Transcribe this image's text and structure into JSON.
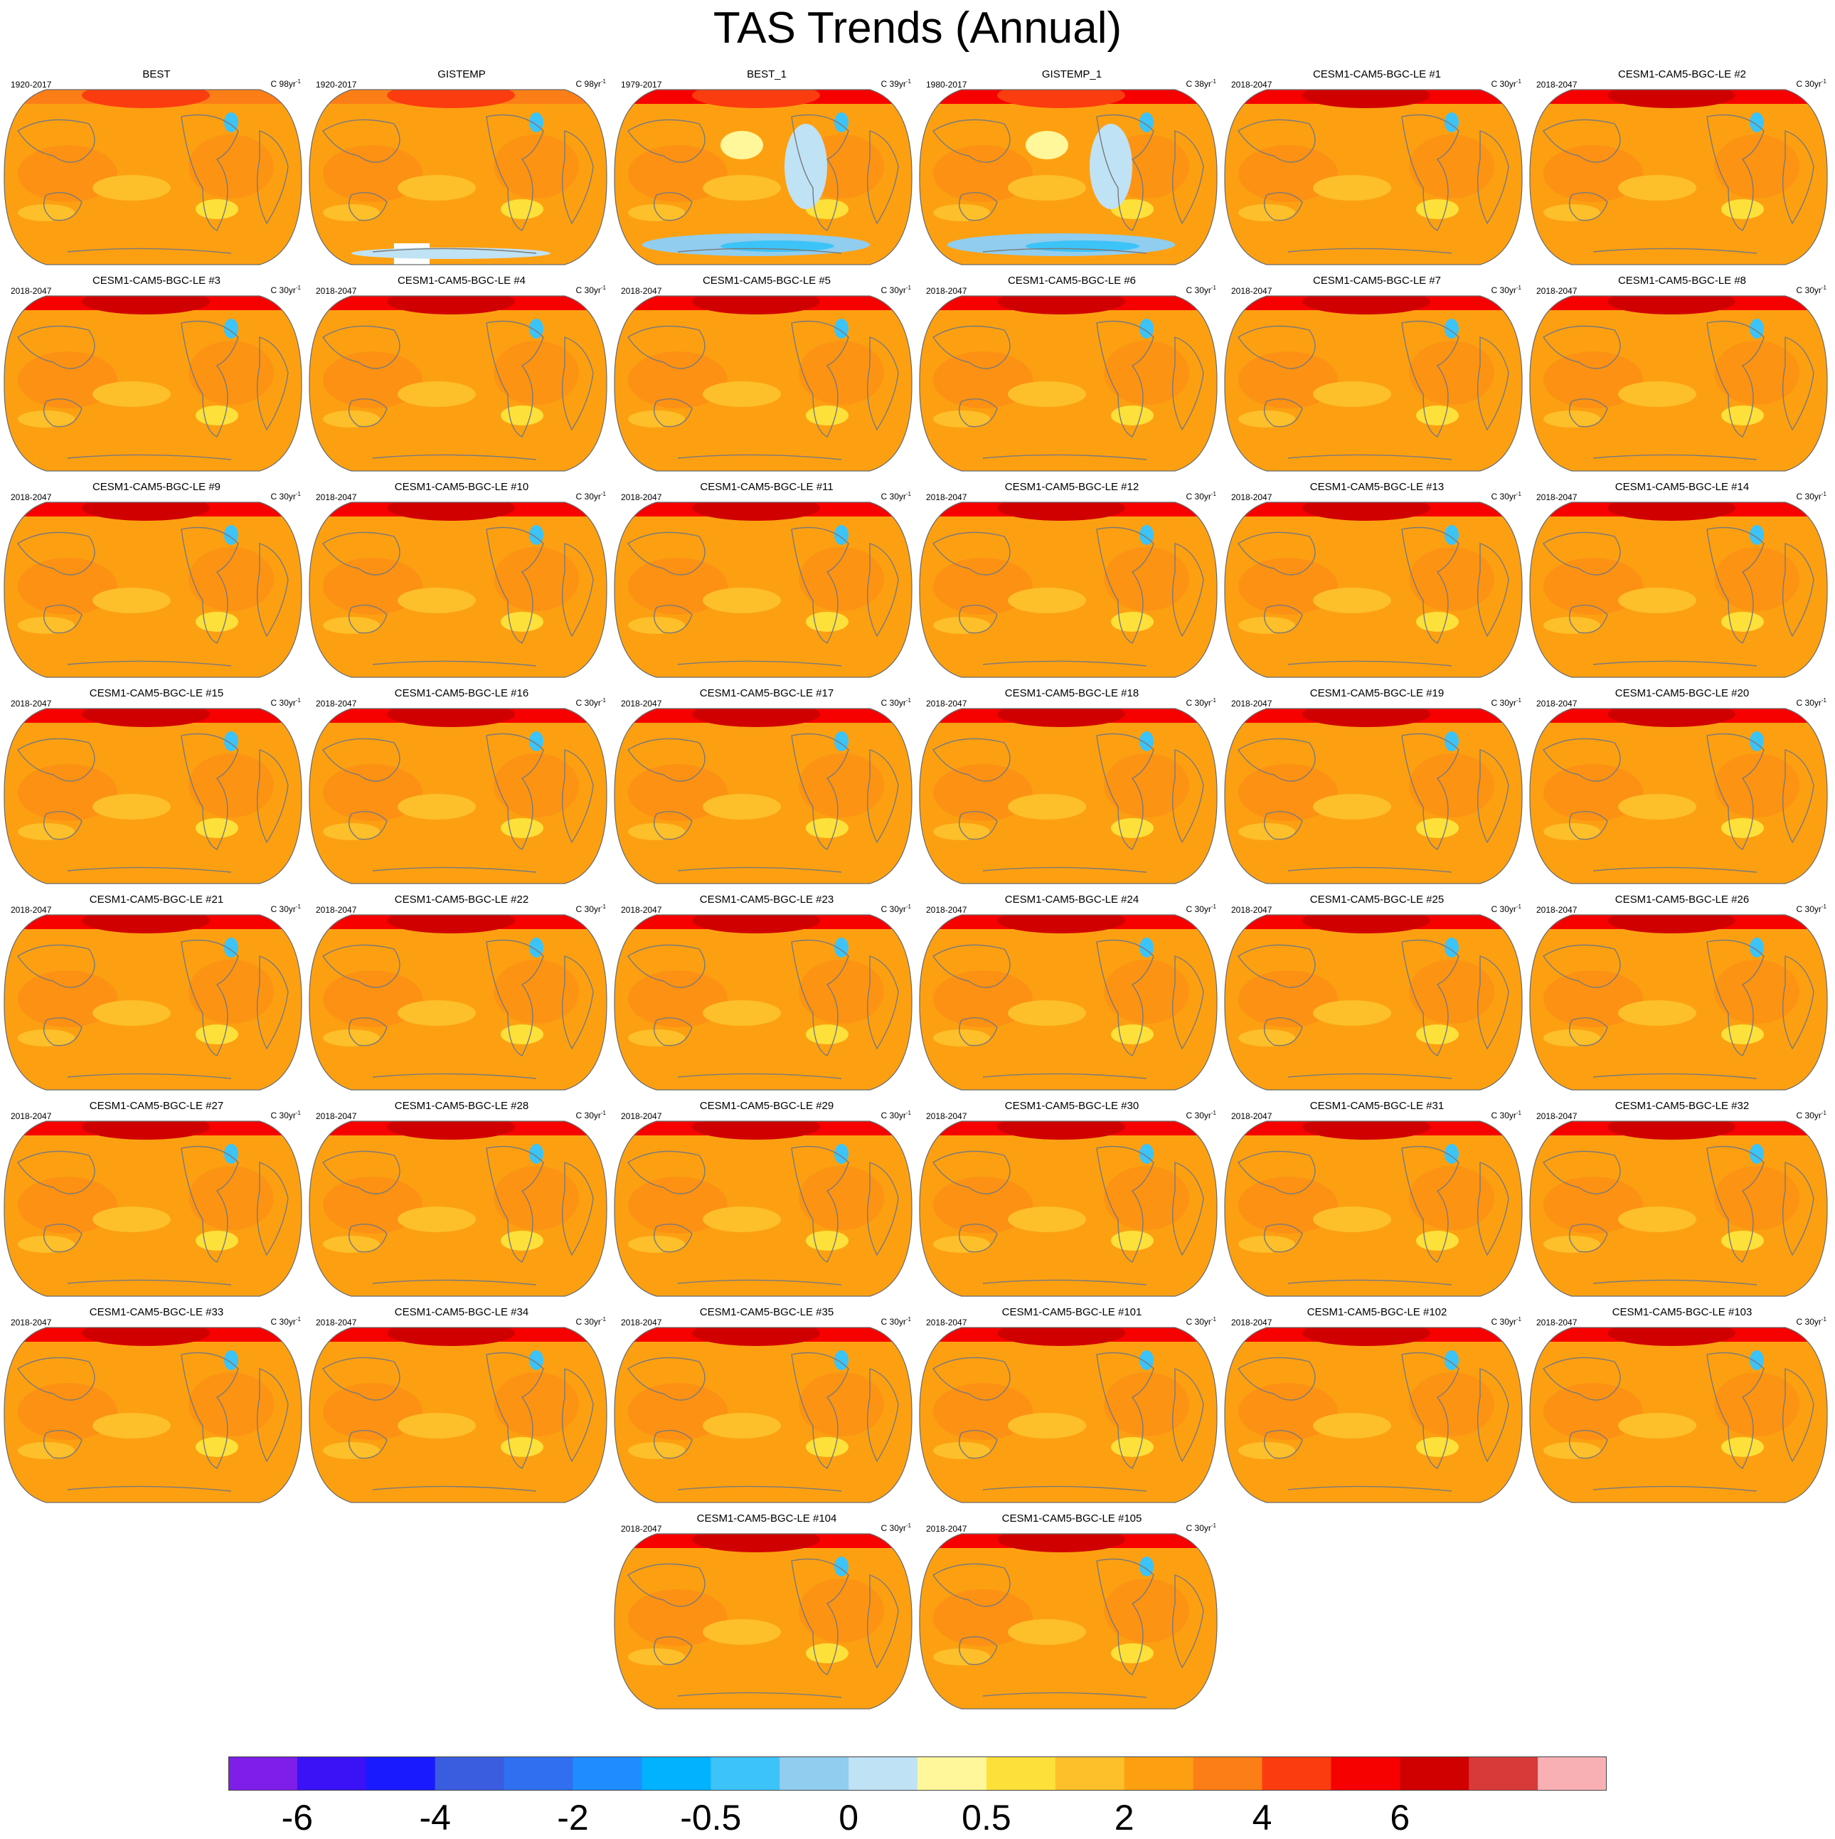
{
  "title": "TAS Trends (Annual)",
  "colorbar": {
    "colors": [
      "#7f1ee8",
      "#3a12f5",
      "#1a1aff",
      "#3a5de0",
      "#2f6ff0",
      "#1f8cff",
      "#00b2ff",
      "#3cc3f7",
      "#90cdee",
      "#bfe2f5",
      "#fff79a",
      "#fde03a",
      "#fdbf2a",
      "#fca012",
      "#fc7e17",
      "#fb3c0f",
      "#f70000",
      "#d00000",
      "#d83a3a",
      "#f9b0b4"
    ],
    "labels": [
      "-6",
      "-4",
      "-2",
      "-0.5",
      "0",
      "0.5",
      "2",
      "4",
      "6"
    ]
  },
  "panels": [
    {
      "title": "BEST",
      "period": "1920-2017",
      "units": "C 98yr"
    },
    {
      "title": "GISTEMP",
      "period": "1920-2017",
      "units": "C 98yr"
    },
    {
      "title": "BEST_1",
      "period": "1979-2017",
      "units": "C 39yr"
    },
    {
      "title": "GISTEMP_1",
      "period": "1980-2017",
      "units": "C 38yr"
    },
    {
      "title": "CESM1-CAM5-BGC-LE #1",
      "period": "2018-2047",
      "units": "C 30yr"
    },
    {
      "title": "CESM1-CAM5-BGC-LE #2",
      "period": "2018-2047",
      "units": "C 30yr"
    },
    {
      "title": "CESM1-CAM5-BGC-LE #3",
      "period": "2018-2047",
      "units": "C 30yr"
    },
    {
      "title": "CESM1-CAM5-BGC-LE #4",
      "period": "2018-2047",
      "units": "C 30yr"
    },
    {
      "title": "CESM1-CAM5-BGC-LE #5",
      "period": "2018-2047",
      "units": "C 30yr"
    },
    {
      "title": "CESM1-CAM5-BGC-LE #6",
      "period": "2018-2047",
      "units": "C 30yr"
    },
    {
      "title": "CESM1-CAM5-BGC-LE #7",
      "period": "2018-2047",
      "units": "C 30yr"
    },
    {
      "title": "CESM1-CAM5-BGC-LE #8",
      "period": "2018-2047",
      "units": "C 30yr"
    },
    {
      "title": "CESM1-CAM5-BGC-LE #9",
      "period": "2018-2047",
      "units": "C 30yr"
    },
    {
      "title": "CESM1-CAM5-BGC-LE #10",
      "period": "2018-2047",
      "units": "C 30yr"
    },
    {
      "title": "CESM1-CAM5-BGC-LE #11",
      "period": "2018-2047",
      "units": "C 30yr"
    },
    {
      "title": "CESM1-CAM5-BGC-LE #12",
      "period": "2018-2047",
      "units": "C 30yr"
    },
    {
      "title": "CESM1-CAM5-BGC-LE #13",
      "period": "2018-2047",
      "units": "C 30yr"
    },
    {
      "title": "CESM1-CAM5-BGC-LE #14",
      "period": "2018-2047",
      "units": "C 30yr"
    },
    {
      "title": "CESM1-CAM5-BGC-LE #15",
      "period": "2018-2047",
      "units": "C 30yr"
    },
    {
      "title": "CESM1-CAM5-BGC-LE #16",
      "period": "2018-2047",
      "units": "C 30yr"
    },
    {
      "title": "CESM1-CAM5-BGC-LE #17",
      "period": "2018-2047",
      "units": "C 30yr"
    },
    {
      "title": "CESM1-CAM5-BGC-LE #18",
      "period": "2018-2047",
      "units": "C 30yr"
    },
    {
      "title": "CESM1-CAM5-BGC-LE #19",
      "period": "2018-2047",
      "units": "C 30yr"
    },
    {
      "title": "CESM1-CAM5-BGC-LE #20",
      "period": "2018-2047",
      "units": "C 30yr"
    },
    {
      "title": "CESM1-CAM5-BGC-LE #21",
      "period": "2018-2047",
      "units": "C 30yr"
    },
    {
      "title": "CESM1-CAM5-BGC-LE #22",
      "period": "2018-2047",
      "units": "C 30yr"
    },
    {
      "title": "CESM1-CAM5-BGC-LE #23",
      "period": "2018-2047",
      "units": "C 30yr"
    },
    {
      "title": "CESM1-CAM5-BGC-LE #24",
      "period": "2018-2047",
      "units": "C 30yr"
    },
    {
      "title": "CESM1-CAM5-BGC-LE #25",
      "period": "2018-2047",
      "units": "C 30yr"
    },
    {
      "title": "CESM1-CAM5-BGC-LE #26",
      "period": "2018-2047",
      "units": "C 30yr"
    },
    {
      "title": "CESM1-CAM5-BGC-LE #27",
      "period": "2018-2047",
      "units": "C 30yr"
    },
    {
      "title": "CESM1-CAM5-BGC-LE #28",
      "period": "2018-2047",
      "units": "C 30yr"
    },
    {
      "title": "CESM1-CAM5-BGC-LE #29",
      "period": "2018-2047",
      "units": "C 30yr"
    },
    {
      "title": "CESM1-CAM5-BGC-LE #30",
      "period": "2018-2047",
      "units": "C 30yr"
    },
    {
      "title": "CESM1-CAM5-BGC-LE #31",
      "period": "2018-2047",
      "units": "C 30yr"
    },
    {
      "title": "CESM1-CAM5-BGC-LE #32",
      "period": "2018-2047",
      "units": "C 30yr"
    },
    {
      "title": "CESM1-CAM5-BGC-LE #33",
      "period": "2018-2047",
      "units": "C 30yr"
    },
    {
      "title": "CESM1-CAM5-BGC-LE #34",
      "period": "2018-2047",
      "units": "C 30yr"
    },
    {
      "title": "CESM1-CAM5-BGC-LE #35",
      "period": "2018-2047",
      "units": "C 30yr"
    },
    {
      "title": "CESM1-CAM5-BGC-LE #101",
      "period": "2018-2047",
      "units": "C 30yr"
    },
    {
      "title": "CESM1-CAM5-BGC-LE #102",
      "period": "2018-2047",
      "units": "C 30yr"
    },
    {
      "title": "CESM1-CAM5-BGC-LE #103",
      "period": "2018-2047",
      "units": "C 30yr"
    },
    {
      "title": "CESM1-CAM5-BGC-LE #104",
      "period": "2018-2047",
      "units": "C 30yr"
    },
    {
      "title": "CESM1-CAM5-BGC-LE #105",
      "period": "2018-2047",
      "units": "C 30yr"
    }
  ],
  "units_exponent": "-1"
}
